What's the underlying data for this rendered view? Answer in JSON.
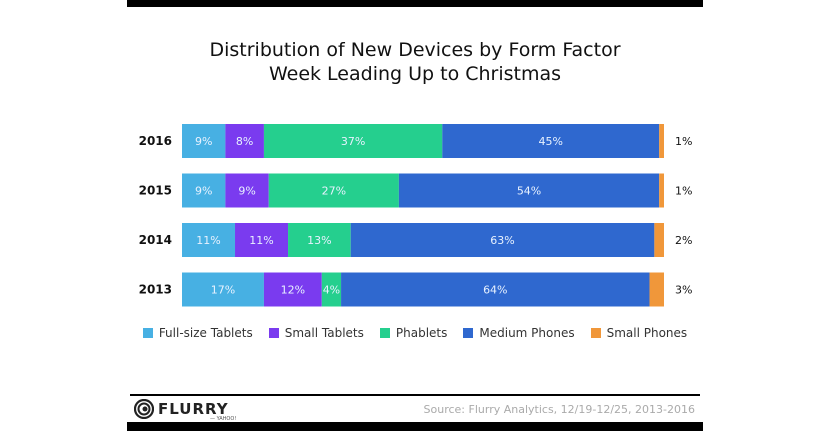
{
  "chart_data": {
    "type": "bar",
    "orientation": "horizontal",
    "stacked": true,
    "title": "Distribution of New Devices by Form Factor",
    "subtitle": "Week Leading Up to Christmas",
    "xlabel": "",
    "ylabel": "",
    "xlim": [
      0,
      100
    ],
    "grid": false,
    "legend_position": "bottom",
    "categories": [
      "2016",
      "2015",
      "2014",
      "2013"
    ],
    "series": [
      {
        "name": "Full-size Tablets",
        "color": "#47b0e3",
        "values": [
          9,
          9,
          11,
          17
        ],
        "labels": [
          "9%",
          "9%",
          "11%",
          "17%"
        ]
      },
      {
        "name": "Small Tablets",
        "color": "#7a3bef",
        "values": [
          8,
          9,
          11,
          12
        ],
        "labels": [
          "8%",
          "9%",
          "11%",
          "12%"
        ]
      },
      {
        "name": "Phablets",
        "color": "#25cf8e",
        "values": [
          37,
          27,
          13,
          4
        ],
        "labels": [
          "37%",
          "27%",
          "13%",
          "4%"
        ]
      },
      {
        "name": "Medium Phones",
        "color": "#2f68cf",
        "values": [
          45,
          54,
          63,
          64
        ],
        "labels": [
          "45%",
          "54%",
          "63%",
          "64%"
        ]
      },
      {
        "name": "Small Phones",
        "color": "#f0973a",
        "values": [
          1,
          1,
          2,
          3
        ],
        "labels": [
          "1%",
          "1%",
          "2%",
          "3%"
        ]
      }
    ]
  },
  "footer": {
    "logo_text": "FLURRY",
    "logo_sub": "— YAHOO!",
    "source": "Source: Flurry Analytics, 12/19-12/25, 2013-2016"
  }
}
